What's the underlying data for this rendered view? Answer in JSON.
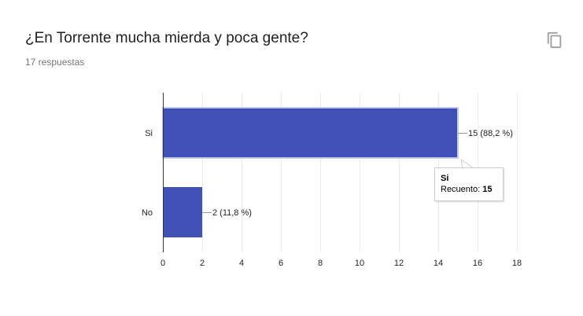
{
  "header": {
    "title": "¿En Torrente mucha mierda y poca gente?",
    "response_count": "17 respuestas"
  },
  "icons": {
    "copy": "copy-icon"
  },
  "colors": {
    "bar": "#3f51b5",
    "grid": "#ebebeb",
    "axis": "#333333"
  },
  "chart_data": {
    "type": "bar",
    "orientation": "horizontal",
    "categories": [
      "Si",
      "No"
    ],
    "values": [
      15,
      2
    ],
    "data_labels": [
      "15 (88,2 %)",
      "2 (11,8 %)"
    ],
    "xlim": [
      0,
      18
    ],
    "x_ticks": [
      "0",
      "2",
      "4",
      "6",
      "8",
      "10",
      "12",
      "14",
      "16",
      "18"
    ],
    "grid": true,
    "tooltip": {
      "category": "Si",
      "label": "Recuento:",
      "value": "15"
    }
  }
}
